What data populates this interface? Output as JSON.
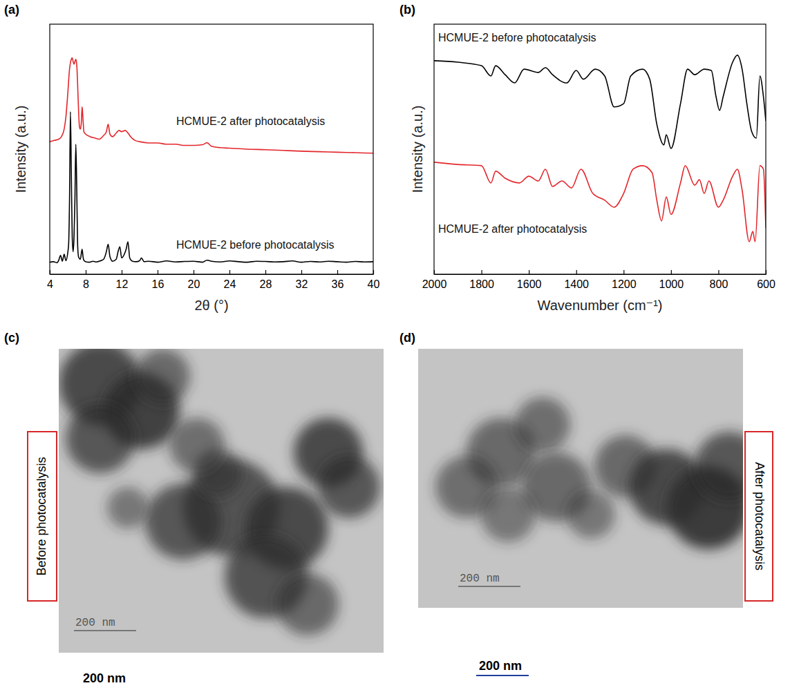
{
  "chart_data": [
    {
      "type": "line",
      "panel_label": "(a)",
      "x_label": "2θ (°)",
      "y_label": "Intensity (a.u.)",
      "xlim": [
        4,
        40
      ],
      "xticks": [
        4,
        8,
        12,
        16,
        20,
        24,
        28,
        32,
        36,
        40
      ],
      "ylim": [
        0,
        100
      ],
      "tick_labels": "x",
      "series": [
        {
          "name": "HCMUE-2 after photocatalysis",
          "color": "#e3262b",
          "x": [
            4.0,
            4.5,
            5.0,
            5.3,
            5.6,
            5.8,
            6.0,
            6.2,
            6.4,
            6.5,
            6.6,
            6.7,
            6.8,
            6.9,
            7.0,
            7.1,
            7.2,
            7.3,
            7.4,
            7.5,
            7.6,
            7.7,
            7.8,
            8.0,
            8.5,
            9.0,
            9.5,
            10.0,
            10.3,
            10.5,
            10.7,
            11.0,
            11.4,
            11.7,
            12.0,
            12.4,
            12.7,
            13.0,
            13.5,
            14.0,
            15,
            16,
            17,
            18,
            19,
            20,
            21,
            21.5,
            22,
            23,
            24,
            26,
            28,
            30,
            32,
            34,
            36,
            38,
            40
          ],
          "values": [
            53,
            53.5,
            54,
            55,
            58,
            63,
            72,
            82,
            86,
            86.5,
            85,
            84,
            85,
            86,
            84,
            76,
            66,
            59,
            58,
            60,
            67,
            62,
            57,
            56,
            55,
            54.5,
            54,
            55.5,
            57,
            60,
            56,
            55,
            56.5,
            57.5,
            57,
            57.5,
            56.5,
            55,
            53.5,
            53,
            52.5,
            52.5,
            52,
            52,
            51.5,
            51.5,
            51.8,
            52.6,
            51.2,
            50.6,
            50.4,
            50,
            49.8,
            49.5,
            49.2,
            49,
            48.8,
            48.6,
            48.4
          ]
        },
        {
          "name": "HCMUE-2 before photocatalysis",
          "color": "#000000",
          "x": [
            4.0,
            4.4,
            4.8,
            5.0,
            5.2,
            5.4,
            5.6,
            5.8,
            6.0,
            6.1,
            6.2,
            6.3,
            6.4,
            6.5,
            6.6,
            6.7,
            6.8,
            6.9,
            7.0,
            7.1,
            7.2,
            7.4,
            7.6,
            7.7,
            7.8,
            8.0,
            8.4,
            8.8,
            9.2,
            9.6,
            10.0,
            10.3,
            10.5,
            10.7,
            11.0,
            11.4,
            11.6,
            11.8,
            12.0,
            12.3,
            12.5,
            12.7,
            12.9,
            13.2,
            13.6,
            14.0,
            14.2,
            14.5,
            15,
            16,
            17,
            18,
            19,
            20,
            21,
            21.5,
            22,
            23,
            24,
            25,
            26,
            27,
            28,
            29,
            30,
            31,
            32,
            33,
            34,
            35,
            36,
            37,
            38,
            39,
            40
          ],
          "values": [
            4.8,
            5.0,
            4.6,
            5.6,
            7.5,
            5.2,
            8.0,
            5.4,
            8.5,
            12,
            30,
            65,
            40,
            15,
            9,
            15,
            30,
            52,
            35,
            12,
            7,
            6,
            10,
            7,
            5.5,
            5.0,
            4.8,
            5.2,
            4.9,
            5.3,
            6,
            9,
            12,
            7,
            5.2,
            6,
            9,
            11,
            6.5,
            8,
            10,
            13,
            6.5,
            5.2,
            5.0,
            5.4,
            6.5,
            5,
            5.2,
            4.8,
            5.3,
            4.9,
            5.1,
            5.2,
            4.8,
            5.6,
            5.2,
            4.9,
            5.3,
            5.0,
            4.8,
            5.2,
            5.1,
            4.9,
            5.0,
            5.3,
            4.8,
            5.1,
            4.9,
            5.2,
            5.0,
            4.8,
            5.1,
            4.9,
            5.0
          ]
        }
      ]
    },
    {
      "type": "line",
      "panel_label": "(b)",
      "x_label": "Wavenumber (cm⁻¹)",
      "y_label": "Intensity (a.u.)",
      "xlim": [
        2000,
        600
      ],
      "xticks": [
        2000,
        1800,
        1600,
        1400,
        1200,
        1000,
        800,
        600
      ],
      "ylim": [
        0,
        100
      ],
      "tick_labels": "x",
      "series": [
        {
          "name": "HCMUE-2 before photocatalysis",
          "color": "#000000",
          "x": [
            2000,
            1900,
            1800,
            1760,
            1740,
            1700,
            1660,
            1620,
            1560,
            1530,
            1500,
            1440,
            1400,
            1370,
            1320,
            1280,
            1240,
            1200,
            1170,
            1120,
            1090,
            1060,
            1030,
            1020,
            1000,
            960,
            930,
            900,
            860,
            830,
            810,
            795,
            780,
            740,
            720,
            700,
            680,
            660,
            640,
            625,
            610,
            600
          ],
          "values": [
            85.4,
            84.8,
            83.4,
            79.3,
            83.4,
            79.8,
            76.5,
            82,
            80.7,
            82.6,
            79.8,
            76.5,
            81.5,
            78,
            82,
            79.3,
            66.9,
            68.2,
            79.3,
            82,
            78,
            60,
            51.7,
            55.8,
            50.3,
            68.2,
            82,
            79.8,
            82,
            81.5,
            71,
            65.5,
            71,
            84.8,
            87.6,
            82,
            68.2,
            57.2,
            54.4,
            79.3,
            71,
            61.3
          ]
        },
        {
          "name": "HCMUE-2 after photocatalysis",
          "color": "#e3262b",
          "x": [
            2000,
            1900,
            1800,
            1760,
            1740,
            1700,
            1640,
            1600,
            1560,
            1530,
            1500,
            1460,
            1420,
            1380,
            1330,
            1280,
            1240,
            1200,
            1160,
            1120,
            1080,
            1060,
            1040,
            1020,
            1000,
            960,
            940,
            900,
            880,
            860,
            840,
            800,
            780,
            740,
            720,
            700,
            670,
            655,
            645,
            625,
            610,
            600
          ],
          "values": [
            44.8,
            43.9,
            43.4,
            36.5,
            41.2,
            38.4,
            36.5,
            39.2,
            37.3,
            42,
            35.1,
            37.3,
            34.5,
            42,
            32.3,
            29.6,
            26.8,
            32.3,
            42,
            43.4,
            40.6,
            29.6,
            21.3,
            30.9,
            23.9,
            36.5,
            43.4,
            35.6,
            37.8,
            32.3,
            37.3,
            26.8,
            29.6,
            39.2,
            42,
            33.7,
            13,
            17.1,
            13,
            43.4,
            42,
            18.5
          ]
        }
      ]
    }
  ],
  "images": [
    {
      "panel_label": "(c)",
      "caption": "Before photocatalysis",
      "scale_text": "200 nm",
      "scale_label": "200 nm"
    },
    {
      "panel_label": "(d)",
      "caption": "After photocatalysis",
      "scale_text": "200 nm",
      "scale_label": "200 nm"
    }
  ]
}
